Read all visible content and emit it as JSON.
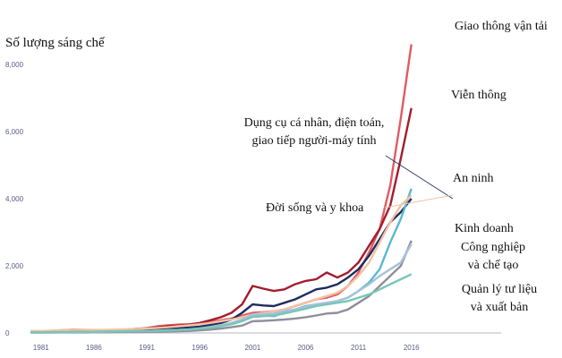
{
  "chart_data": {
    "type": "line",
    "ylabel": "Số lượng sáng chế",
    "x_ticks": [
      1981,
      1986,
      1991,
      1996,
      2001,
      2006,
      2011,
      2016
    ],
    "y_ticks": [
      0,
      2000,
      4000,
      6000,
      8000
    ],
    "y_tick_labels": [
      "0",
      "2,000",
      "4,000",
      "6,000",
      "8,000"
    ],
    "xlim": [
      1980,
      2026
    ],
    "ylim": [
      0,
      8000
    ],
    "grid": false,
    "x": [
      1980,
      1981,
      1982,
      1983,
      1984,
      1985,
      1986,
      1987,
      1988,
      1989,
      1990,
      1991,
      1992,
      1993,
      1994,
      1995,
      1996,
      1997,
      1998,
      1999,
      2000,
      2001,
      2002,
      2003,
      2004,
      2005,
      2006,
      2007,
      2008,
      2009,
      2010,
      2011,
      2012,
      2013,
      2014,
      2015,
      2016
    ],
    "series": [
      {
        "name": "Giao thông vận tải",
        "color": "#e05b62",
        "values": [
          40,
          45,
          60,
          80,
          100,
          90,
          70,
          80,
          90,
          100,
          120,
          150,
          200,
          230,
          250,
          260,
          280,
          330,
          380,
          430,
          520,
          600,
          620,
          650,
          700,
          800,
          900,
          1000,
          1050,
          1150,
          1400,
          1800,
          2400,
          3100,
          4400,
          6400,
          8600
        ]
      },
      {
        "name": "Viễn thông",
        "color": "#a21d2d",
        "values": [
          30,
          30,
          40,
          50,
          60,
          55,
          60,
          70,
          80,
          100,
          120,
          130,
          160,
          200,
          220,
          250,
          300,
          380,
          470,
          600,
          850,
          1400,
          1320,
          1250,
          1300,
          1450,
          1550,
          1600,
          1800,
          1650,
          1800,
          2100,
          2600,
          3100,
          3800,
          5200,
          6700
        ]
      },
      {
        "name": "Dụng cụ cá nhân, điện toán, giao tiếp người-máy tính",
        "color": "#1e2c5e",
        "values": [
          20,
          20,
          25,
          30,
          35,
          40,
          45,
          50,
          55,
          60,
          70,
          80,
          100,
          120,
          140,
          160,
          190,
          240,
          300,
          400,
          600,
          850,
          820,
          800,
          900,
          1000,
          1150,
          1300,
          1350,
          1450,
          1650,
          1900,
          2300,
          2800,
          3300,
          3600,
          4000
        ]
      },
      {
        "name": "An ninh",
        "color": "#5bb8cf",
        "values": [
          15,
          15,
          20,
          20,
          25,
          25,
          30,
          30,
          35,
          40,
          45,
          50,
          60,
          70,
          80,
          100,
          120,
          150,
          200,
          280,
          400,
          550,
          520,
          500,
          600,
          700,
          800,
          850,
          900,
          950,
          1050,
          1250,
          1500,
          1900,
          2700,
          3400,
          4300
        ]
      },
      {
        "name": "Đời sống và y khoa",
        "color": "#f2c2a2",
        "values": [
          60,
          60,
          70,
          80,
          90,
          100,
          90,
          90,
          100,
          110,
          120,
          130,
          150,
          170,
          200,
          230,
          260,
          300,
          350,
          400,
          470,
          550,
          600,
          650,
          700,
          800,
          900,
          1000,
          1100,
          1200,
          1400,
          1700,
          2100,
          2700,
          3300,
          3800,
          4100
        ]
      },
      {
        "name": "Kinh doanh",
        "color": "#8f8f9c",
        "values": [
          10,
          10,
          10,
          15,
          15,
          15,
          20,
          20,
          25,
          25,
          30,
          35,
          40,
          45,
          50,
          60,
          80,
          100,
          130,
          170,
          220,
          350,
          360,
          380,
          400,
          430,
          470,
          520,
          580,
          600,
          700,
          900,
          1100,
          1400,
          1700,
          2000,
          2750
        ]
      },
      {
        "name": "Công nghiệp và chế tạo",
        "color": "#a8c0dc",
        "values": [
          20,
          20,
          25,
          25,
          30,
          30,
          35,
          40,
          45,
          50,
          55,
          60,
          70,
          80,
          90,
          110,
          140,
          180,
          230,
          300,
          400,
          550,
          560,
          580,
          650,
          700,
          780,
          850,
          900,
          950,
          1050,
          1250,
          1450,
          1700,
          1900,
          2100,
          2650
        ]
      },
      {
        "name": "Quản lý tư liệu và xuất bản",
        "color": "#76c7b8",
        "values": [
          20,
          20,
          25,
          25,
          30,
          30,
          35,
          40,
          45,
          50,
          55,
          60,
          70,
          80,
          90,
          100,
          130,
          160,
          200,
          260,
          350,
          480,
          500,
          520,
          580,
          650,
          720,
          800,
          850,
          900,
          950,
          1050,
          1150,
          1300,
          1450,
          1600,
          1750
        ]
      }
    ],
    "annotations": [
      {
        "lines": [
          "Giao thông vận tải"
        ]
      },
      {
        "lines": [
          "Viễn thông"
        ]
      },
      {
        "lines": [
          "Dụng cụ cá nhân, điện toán,",
          "giao tiếp người-máy tính"
        ]
      },
      {
        "lines": [
          "An ninh"
        ]
      },
      {
        "lines": [
          "Đời sống và y khoa"
        ]
      },
      {
        "lines": [
          "Kinh doanh"
        ]
      },
      {
        "lines": [
          "Công nghiệp",
          "và chế tạo"
        ]
      },
      {
        "lines": [
          "Quản lý tư liệu",
          "và xuất bản"
        ]
      }
    ]
  }
}
